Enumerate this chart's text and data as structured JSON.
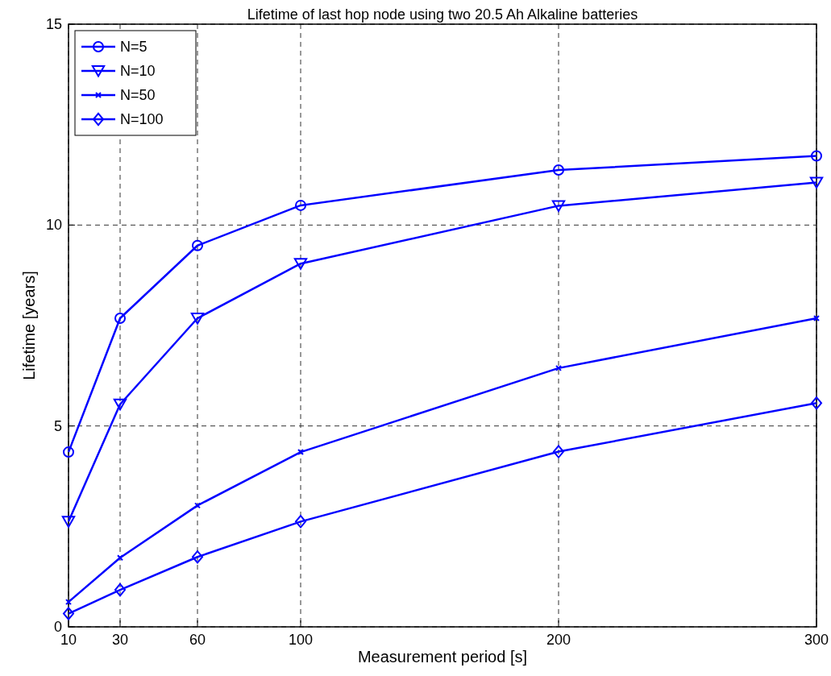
{
  "chart_data": {
    "type": "line",
    "title": "Lifetime of last hop node using two 20.5 Ah Alkaline batteries",
    "xlabel": "Measurement period [s]",
    "ylabel": "Lifetime [years]",
    "x": [
      10,
      30,
      60,
      100,
      200,
      300
    ],
    "series": [
      {
        "name": "N=5",
        "color": "#0000ff",
        "marker": "circle",
        "values": [
          4.35,
          7.68,
          9.49,
          10.49,
          11.37,
          11.72
        ]
      },
      {
        "name": "N=10",
        "color": "#0000ff",
        "marker": "triangle",
        "values": [
          2.62,
          5.54,
          7.68,
          9.04,
          10.48,
          11.06
        ]
      },
      {
        "name": "N=50",
        "color": "#0000ff",
        "marker": "cross",
        "values": [
          0.62,
          1.72,
          3.02,
          4.35,
          6.44,
          7.68
        ]
      },
      {
        "name": "N=100",
        "color": "#0000ff",
        "marker": "diamond",
        "values": [
          0.33,
          0.92,
          1.74,
          2.62,
          4.36,
          5.57
        ]
      }
    ],
    "xlim": [
      10,
      300
    ],
    "xticks": [
      10,
      30,
      60,
      100,
      200,
      300
    ],
    "ylim": [
      0,
      15
    ],
    "yticks": [
      0,
      5,
      10,
      15
    ],
    "grid": true,
    "legend": "top left",
    "line_style": "solid"
  }
}
